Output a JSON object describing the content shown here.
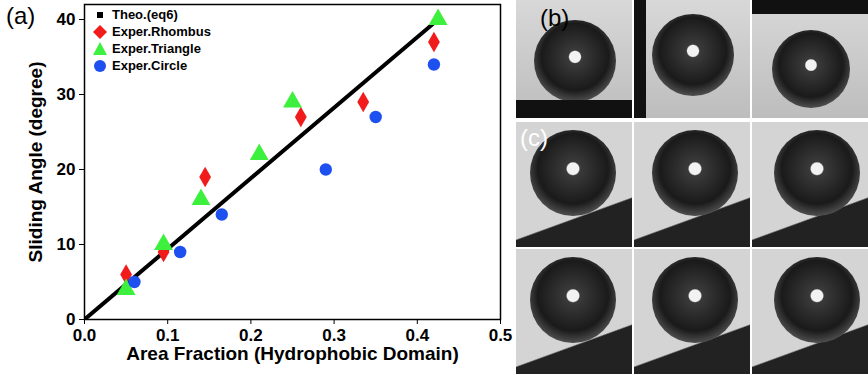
{
  "chart_data": {
    "type": "scatter",
    "annotations": [
      "(a)"
    ],
    "x_label": "Area Fraction (Hydrophobic Domain)",
    "y_label": "Sliding Angle (degree)",
    "xlim": [
      0,
      0.5
    ],
    "xticks": [
      {
        "value": 0,
        "label": "0.0"
      },
      0.1,
      0.2,
      0.3,
      0.4,
      0.5
    ],
    "ylim": [
      0,
      42
    ],
    "yticks": [
      0,
      10,
      20,
      30,
      40
    ],
    "legend": "top-left",
    "series": [
      {
        "name": "Theo.(eq6)",
        "type": "line",
        "marker": "square",
        "color": "#000000",
        "x": [
          0,
          0.425
        ],
        "values": [
          0,
          40
        ]
      },
      {
        "name": "Exper.Rhombus",
        "type": "scatter",
        "marker": "diamond",
        "color": "#f21b1b",
        "x": [
          0.05,
          0.095,
          0.145,
          0.26,
          0.335,
          0.42
        ],
        "values": [
          6,
          9,
          19,
          27,
          29,
          37
        ]
      },
      {
        "name": "Exper.Triangle",
        "type": "scatter",
        "marker": "triangle",
        "color": "#3ef03e",
        "x": [
          0.05,
          0.095,
          0.14,
          0.21,
          0.25,
          0.425
        ],
        "values": [
          4,
          10,
          16,
          22,
          29,
          40
        ]
      },
      {
        "name": "Exper.Circle",
        "type": "scatter",
        "marker": "circle",
        "color": "#1e50f0",
        "x": [
          0.06,
          0.115,
          0.165,
          0.29,
          0.35,
          0.42
        ],
        "values": [
          5,
          9,
          14,
          20,
          27,
          34
        ]
      }
    ]
  },
  "photos": {
    "labels": [
      "(b)",
      "(c)"
    ]
  }
}
